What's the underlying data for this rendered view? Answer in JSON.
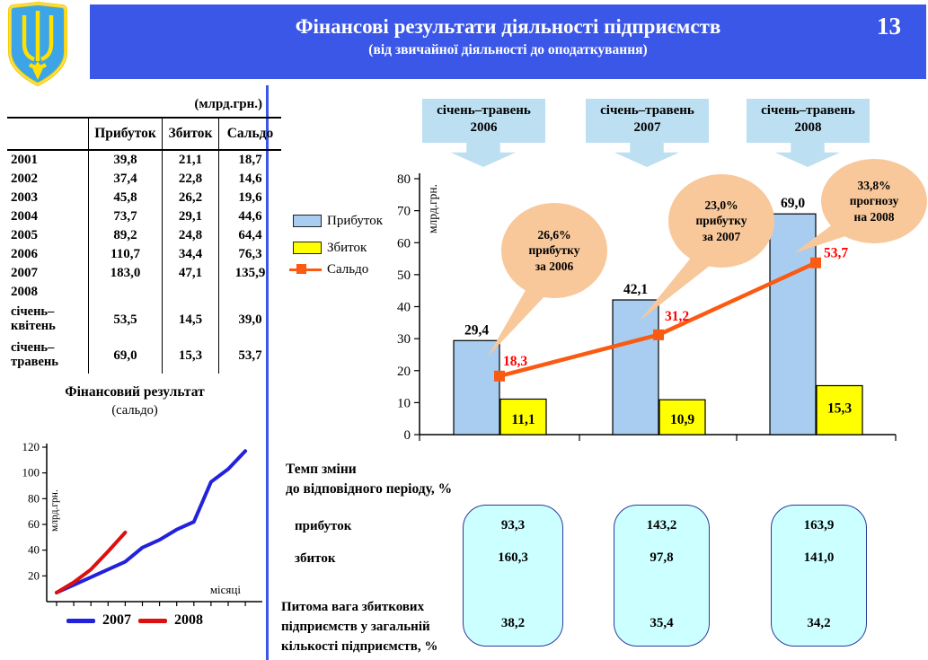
{
  "header": {
    "title": "Фінансові результати діяльності підприємств",
    "subtitle": "(від звичайної діяльності до оподаткування)",
    "page_number": "13"
  },
  "table": {
    "unit": "(млрд.грн.)",
    "columns": [
      "Прибуток",
      "Збиток",
      "Сальдо"
    ],
    "rows": [
      {
        "label": "2001",
        "profit": "39,8",
        "loss": "21,1",
        "saldo": "18,7"
      },
      {
        "label": "2002",
        "profit": "37,4",
        "loss": "22,8",
        "saldo": "14,6"
      },
      {
        "label": "2003",
        "profit": "45,8",
        "loss": "26,2",
        "saldo": "19,6"
      },
      {
        "label": "2004",
        "profit": "73,7",
        "loss": "29,1",
        "saldo": "44,6"
      },
      {
        "label": "2005",
        "profit": "89,2",
        "loss": "24,8",
        "saldo": "64,4"
      },
      {
        "label": "2006",
        "profit": "110,7",
        "loss": "34,4",
        "saldo": "76,3"
      },
      {
        "label": "2007",
        "profit": "183,0",
        "loss": "47,1",
        "saldo": "135,9"
      },
      {
        "label": "2008",
        "profit": "",
        "loss": "",
        "saldo": ""
      },
      {
        "label": "січень–\nквітень",
        "profit": "53,5",
        "loss": "14,5",
        "saldo": "39,0"
      },
      {
        "label": "січень–\nтравень",
        "profit": "69,0",
        "loss": "15,3",
        "saldo": "53,7"
      }
    ]
  },
  "period_callouts": [
    {
      "line1": "січень–травень",
      "line2": "2006"
    },
    {
      "line1": "січень–травень",
      "line2": "2007"
    },
    {
      "line1": "січень–травень",
      "line2": "2008"
    }
  ],
  "legend": {
    "profit": "Прибуток",
    "loss": "Збиток",
    "saldo": "Сальдо"
  },
  "bubbles": [
    {
      "lines": [
        "26,6%",
        "прибутку",
        "за 2006"
      ]
    },
    {
      "lines": [
        "23,0%",
        "прибутку",
        "за 2007"
      ]
    },
    {
      "lines": [
        "33,8%",
        "прогнозу",
        "на 2008"
      ]
    }
  ],
  "tempo": {
    "heading_line1": "Темп зміни",
    "heading_line2": "до відповідного періоду, %",
    "row1_label": "прибуток",
    "row2_label": "збиток",
    "share_label_line1": "Питома вага збиткових",
    "share_label_line2": "підприємств у загальній",
    "share_label_line3": "кількості підприємств, %",
    "boxes": [
      {
        "profit": "93,3",
        "loss": "160,3",
        "share": "38,2"
      },
      {
        "profit": "143,2",
        "loss": "97,8",
        "share": "35,4"
      },
      {
        "profit": "163,9",
        "loss": "141,0",
        "share": "34,2"
      }
    ]
  },
  "mini_chart_titles": {
    "title": "Фінансовий результат",
    "subtitle": "(сальдо)",
    "ylabel": "млрд.грн.",
    "xlabel": "місяці"
  },
  "chart_data": [
    {
      "type": "bar",
      "categories": [
        "січень–травень 2006",
        "січень–травень 2007",
        "січень–травень 2008"
      ],
      "ylabel": "млрд.грн.",
      "ylim": [
        0,
        80
      ],
      "ytick_step": 10,
      "legend_position": "left",
      "series": [
        {
          "name": "Прибуток",
          "type": "bar",
          "color": "#A8CDF0",
          "values": [
            29.4,
            42.1,
            69.0
          ],
          "labels": [
            "29,4",
            "42,1",
            "69,0"
          ]
        },
        {
          "name": "Збиток",
          "type": "bar",
          "color": "#FFFF00",
          "values": [
            11.1,
            10.9,
            15.3
          ],
          "labels": [
            "11,1",
            "10,9",
            "15,3"
          ]
        },
        {
          "name": "Сальдо",
          "type": "line",
          "color": "#FA5A12",
          "label_color": "#FF0000",
          "values": [
            18.3,
            31.2,
            53.7
          ],
          "labels": [
            "18,3",
            "31,2",
            "53,7"
          ]
        }
      ]
    },
    {
      "type": "line",
      "title": "Фінансовий результат (сальдо)",
      "ylabel": "млрд.грн.",
      "xlabel": "місяці",
      "ylim": [
        0,
        120
      ],
      "ytick_step": 20,
      "xticks": 12,
      "legend_position": "bottom",
      "series": [
        {
          "name": "2007",
          "color": "#2222DD",
          "x": [
            1,
            2,
            3,
            4,
            5,
            6,
            7,
            8,
            9,
            10,
            11,
            12
          ],
          "values": [
            7,
            13,
            19,
            25,
            31,
            42,
            48,
            56,
            62,
            93,
            103,
            117
          ]
        },
        {
          "name": "2008",
          "color": "#DD0F0F",
          "x": [
            1,
            2,
            3,
            4,
            5
          ],
          "values": [
            7,
            15,
            25,
            39,
            53.7
          ]
        }
      ]
    }
  ],
  "colors": {
    "header_bg": "#3B57E8",
    "callout_bg": "#BCDFF1",
    "bubble_bg": "#F8C89B",
    "value_box_bg": "#CCFFFF",
    "profit_bar": "#A8CDF0",
    "loss_bar": "#FFFF00",
    "saldo_line": "#FA5A12",
    "saldo_label": "#FF0000"
  }
}
